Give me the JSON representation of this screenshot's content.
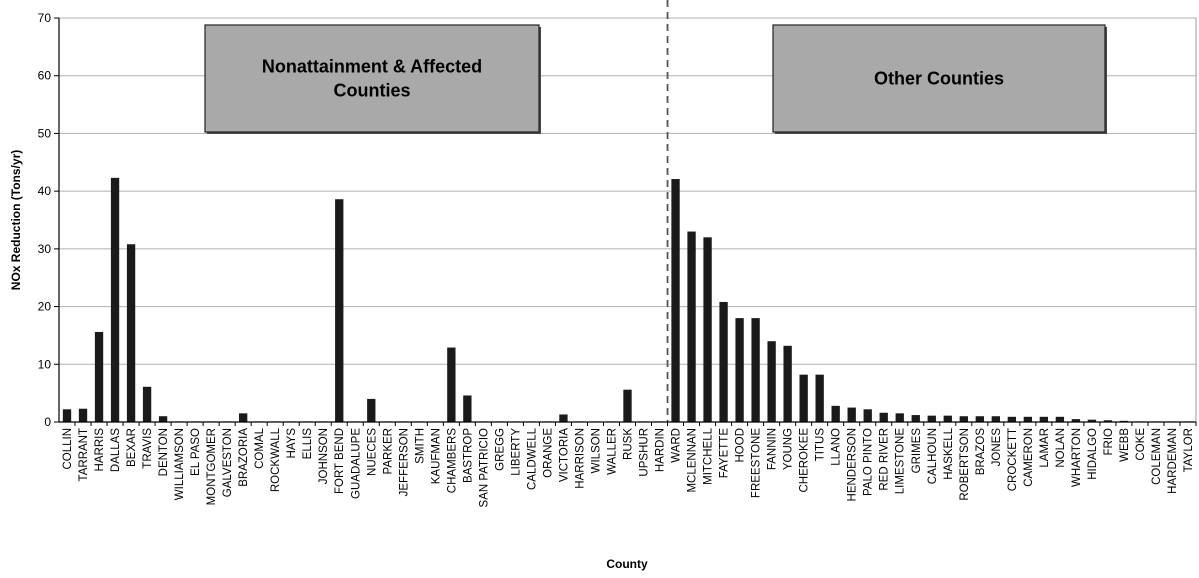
{
  "chart_data": {
    "type": "bar",
    "xlabel": "County",
    "ylabel": "NOx Reduction (Tons/yr)",
    "ylim": [
      0,
      70
    ],
    "yticks": [
      0,
      10,
      20,
      30,
      40,
      50,
      60,
      70
    ],
    "grid": true,
    "bar_color": "#1a1a1a",
    "box_color": "#a9a9a9",
    "divider_after": "HARDIN",
    "boxes": [
      {
        "lines": [
          "Nonattainment & Affected",
          "Counties"
        ]
      },
      {
        "lines": [
          "Other Counties"
        ]
      }
    ],
    "categories": [
      "COLLIN",
      "TARRANT",
      "HARRIS",
      "DALLAS",
      "BEXAR",
      "TRAVIS",
      "DENTON",
      "WILLIAMSON",
      "EL PASO",
      "MONTGOMER",
      "GALVESTON",
      "BRAZORIA",
      "COMAL",
      "ROCKWALL",
      "HAYS",
      "ELLIS",
      "JOHNSON",
      "FORT BEND",
      "GUADALUPE",
      "NUECES",
      "PARKER",
      "JEFFERSON",
      "SMITH",
      "KAUFMAN",
      "CHAMBERS",
      "BASTROP",
      "SAN PATRICIO",
      "GREGG",
      "LIBERTY",
      "CALDWELL",
      "ORANGE",
      "VICTORIA",
      "HARRISON",
      "WILSON",
      "WALLER",
      "RUSK",
      "UPSHUR",
      "HARDIN",
      "WARD",
      "MCLENNAN",
      "MITCHELL",
      "FAYETTE",
      "HOOD",
      "FREESTONE",
      "FANNIN",
      "YOUNG",
      "CHEROKEE",
      "TITUS",
      "LLANO",
      "HENDERSON",
      "PALO PINTO",
      "RED RIVER",
      "LIMESTONE",
      "GRIMES",
      "CALHOUN",
      "HASKELL",
      "ROBERTSON",
      "BRAZOS",
      "JONES",
      "CROCKETT",
      "CAMERON",
      "LAMAR",
      "NOLAN",
      "WHARTON",
      "HIDALGO",
      "FRIO",
      "WEBB",
      "COKE",
      "COLEMAN",
      "HARDEMAN",
      "TAYLOR"
    ],
    "values": [
      2.2,
      2.3,
      15.6,
      42.3,
      30.8,
      6.1,
      1.0,
      0.1,
      0.1,
      0.1,
      0.1,
      1.5,
      0.1,
      0.1,
      0.1,
      0.1,
      0.1,
      38.6,
      0.1,
      4.0,
      0.1,
      0.1,
      0.1,
      0.1,
      12.9,
      4.6,
      0.1,
      0.1,
      0.1,
      0.1,
      0.1,
      1.3,
      0.1,
      0.1,
      0.1,
      5.6,
      0.1,
      0.1,
      42.1,
      33.0,
      32.0,
      20.8,
      18.0,
      18.0,
      14.0,
      13.2,
      8.2,
      8.2,
      2.8,
      2.5,
      2.2,
      1.6,
      1.5,
      1.2,
      1.1,
      1.1,
      1.0,
      1.0,
      1.0,
      0.9,
      0.9,
      0.9,
      0.9,
      0.5,
      0.4,
      0.3,
      0.2,
      0.1,
      0.1,
      0.1,
      0.1
    ]
  }
}
